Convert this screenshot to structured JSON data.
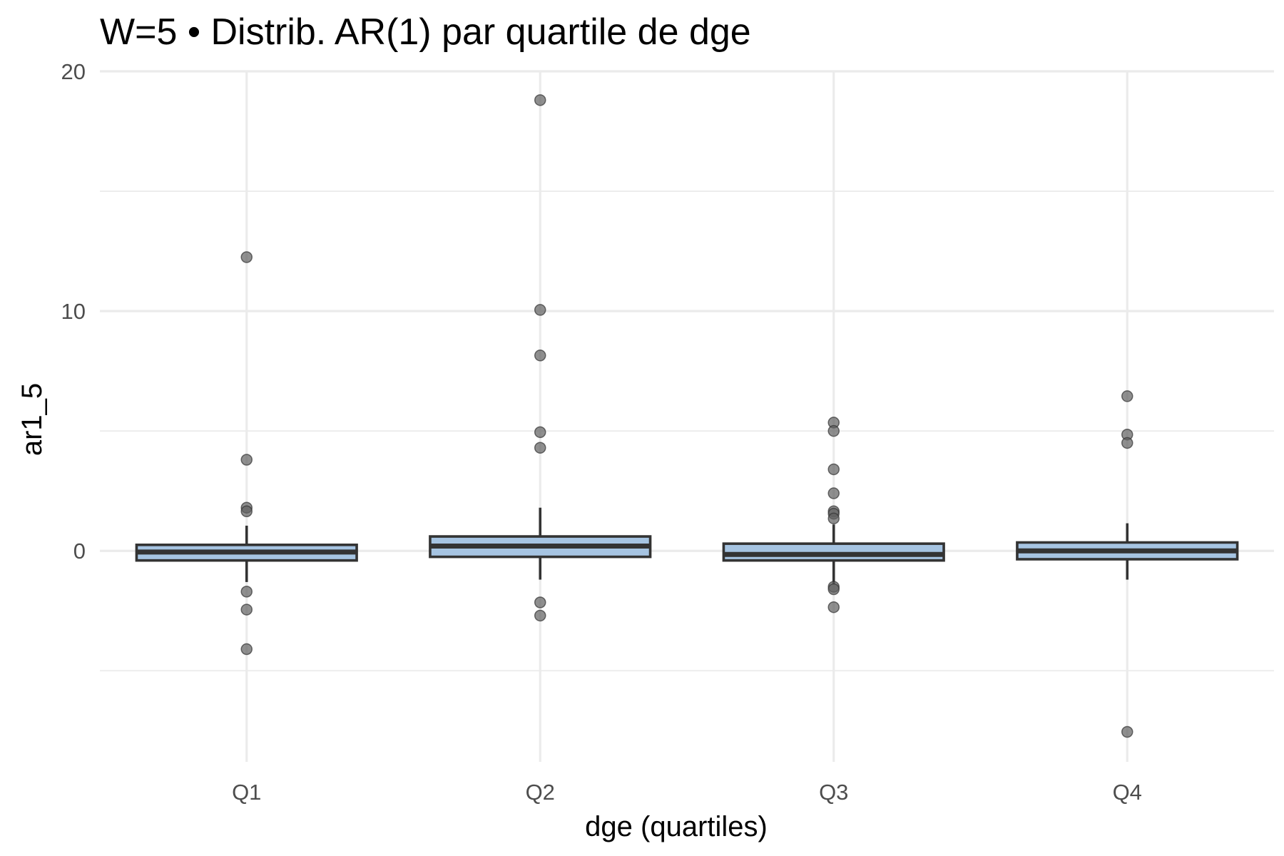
{
  "chart_data": {
    "type": "boxplot",
    "title": "W=5 • Distrib. AR(1) par quartile de dge",
    "xlabel": "dge (quartiles)",
    "ylabel": "ar1_5",
    "categories": [
      "Q1",
      "Q2",
      "Q3",
      "Q4"
    ],
    "ylim": [
      -8.8,
      20.0
    ],
    "y_ticks": [
      0,
      10,
      20
    ],
    "y_minor_ticks": [
      -5,
      5,
      15
    ],
    "grid": true,
    "legend": "none",
    "colors": {
      "box_fill": "#a6c4e2",
      "box_line": "#333333",
      "outlier": "#5f5f5f"
    },
    "boxes": [
      {
        "category": "Q1",
        "q1": -0.4,
        "median": -0.05,
        "q3": 0.25,
        "whisker_low": -1.3,
        "whisker_high": 1.05,
        "outliers": [
          12.25,
          3.8,
          1.8,
          1.65,
          -1.7,
          -2.45,
          -4.1
        ]
      },
      {
        "category": "Q2",
        "q1": -0.25,
        "median": 0.2,
        "q3": 0.6,
        "whisker_low": -1.2,
        "whisker_high": 1.8,
        "outliers": [
          18.8,
          10.05,
          8.15,
          4.95,
          4.3,
          -2.15,
          -2.7
        ]
      },
      {
        "category": "Q3",
        "q1": -0.4,
        "median": -0.15,
        "q3": 0.3,
        "whisker_low": -1.4,
        "whisker_high": 1.1,
        "outliers": [
          5.35,
          5.0,
          3.4,
          2.4,
          1.65,
          1.55,
          1.35,
          -1.5,
          -1.6,
          -2.35
        ]
      },
      {
        "category": "Q4",
        "q1": -0.35,
        "median": 0.0,
        "q3": 0.35,
        "whisker_low": -1.2,
        "whisker_high": 1.15,
        "outliers": [
          6.45,
          4.85,
          4.5,
          -7.55
        ]
      }
    ]
  }
}
